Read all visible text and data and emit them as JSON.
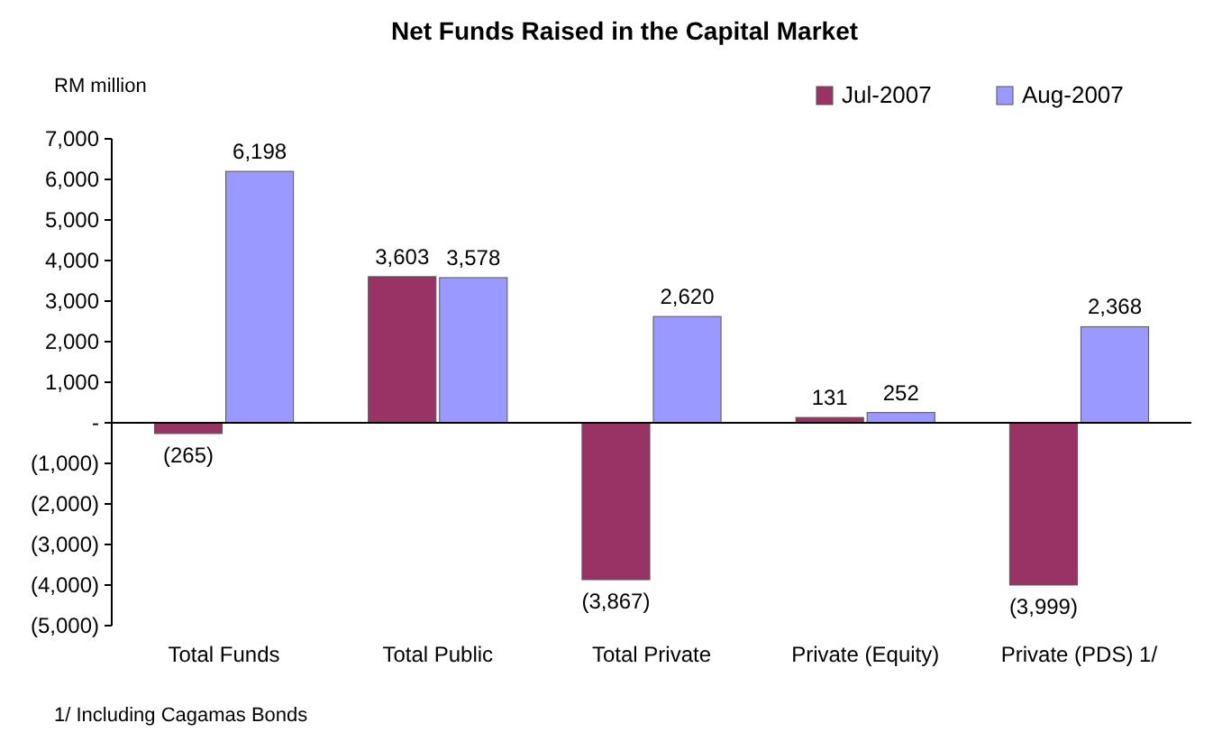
{
  "chart_data": {
    "type": "bar",
    "title": "Net Funds Raised in the Capital Market",
    "ylabel": "RM million",
    "categories": [
      "Total Funds",
      "Total Public",
      "Total Private",
      "Private (Equity)",
      "Private (PDS) 1/"
    ],
    "series": [
      {
        "name": "Jul-2007",
        "color": "#993366",
        "values": [
          -265,
          3603,
          -3867,
          131,
          -3999
        ],
        "value_labels": [
          "(265)",
          "3,603",
          "(3,867)",
          "131",
          "(3,999)"
        ]
      },
      {
        "name": "Aug-2007",
        "color": "#9999ff",
        "values": [
          6198,
          3578,
          2620,
          252,
          2368
        ],
        "value_labels": [
          "6,198",
          "3,578",
          "2,620",
          "252",
          "2,368"
        ]
      }
    ],
    "ylim": [
      -5000,
      7000
    ],
    "yticks": [
      {
        "value": -5000,
        "label": "(5,000)"
      },
      {
        "value": -4000,
        "label": "(4,000)"
      },
      {
        "value": -3000,
        "label": "(3,000)"
      },
      {
        "value": -2000,
        "label": "(2,000)"
      },
      {
        "value": -1000,
        "label": "(1,000)"
      },
      {
        "value": 0,
        "label": "-"
      },
      {
        "value": 1000,
        "label": "1,000"
      },
      {
        "value": 2000,
        "label": "2,000"
      },
      {
        "value": 3000,
        "label": "3,000"
      },
      {
        "value": 4000,
        "label": "4,000"
      },
      {
        "value": 5000,
        "label": "5,000"
      },
      {
        "value": 6000,
        "label": "6,000"
      },
      {
        "value": 7000,
        "label": "7,000"
      }
    ],
    "legend": "top right",
    "annotations": [
      "1/ Including Cagamas Bonds"
    ]
  }
}
